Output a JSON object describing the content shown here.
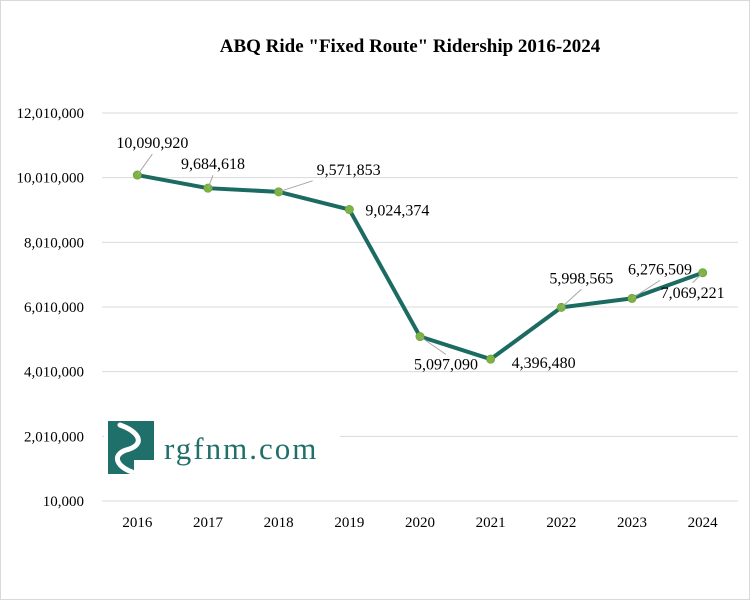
{
  "chart_data": {
    "type": "line",
    "title": "ABQ Ride \"Fixed Route\" Ridership 2016-2024",
    "xlabel": "",
    "ylabel": "",
    "categories": [
      "2016",
      "2017",
      "2018",
      "2019",
      "2020",
      "2021",
      "2022",
      "2023",
      "2024"
    ],
    "series": [
      {
        "values": [
          10090920,
          9684618,
          9571853,
          9024374,
          5097090,
          4396480,
          5998565,
          6276509,
          7069221
        ],
        "labels": [
          "10,090,920",
          "9,684,618",
          "9,571,853",
          "9,024,374",
          "5,097,090",
          "4,396,480",
          "5,998,565",
          "6,276,509",
          "7,069,221"
        ]
      }
    ],
    "ylim": [
      10000,
      12010000
    ],
    "yticks": [
      10000,
      2010000,
      4010000,
      6010000,
      8010000,
      10010000,
      12010000
    ],
    "ytick_labels": [
      "10,000",
      "2,010,000",
      "4,010,000",
      "6,010,000",
      "8,010,000",
      "10,010,000",
      "12,010,000"
    ],
    "grid": true,
    "legend": "none",
    "colors": {
      "line": "#1c6b63",
      "marker": "#7cb342",
      "grid": "#d9d9d9",
      "leader": "#a6a6a6"
    }
  },
  "logo": {
    "text": "rgfnm.com",
    "icon": "rgfnm-logo-icon",
    "color": "#1f6f6b"
  }
}
